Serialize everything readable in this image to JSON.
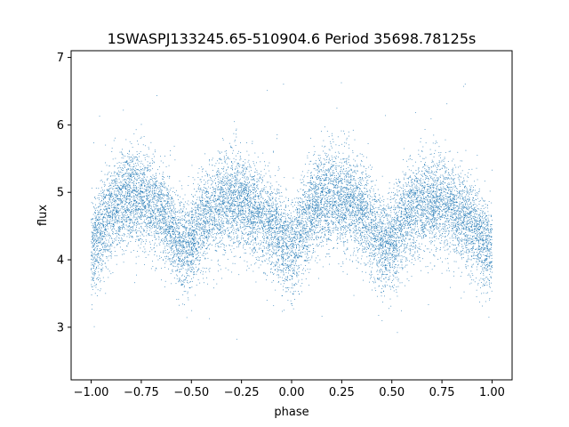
{
  "chart_data": {
    "type": "scatter",
    "title": "1SWASPJ133245.65-510904.6 Period 35698.78125s",
    "xlabel": "phase",
    "ylabel": "flux",
    "xlim": [
      -1.1,
      1.1
    ],
    "ylim": [
      2.22,
      7.1
    ],
    "xticks": [
      -1.0,
      -0.75,
      -0.5,
      -0.25,
      0.0,
      0.25,
      0.5,
      0.75,
      1.0
    ],
    "xtick_labels": [
      "−1.00",
      "−0.75",
      "−0.50",
      "−0.25",
      "0.00",
      "0.25",
      "0.50",
      "0.75",
      "1.00"
    ],
    "yticks": [
      3,
      4,
      5,
      6,
      7
    ],
    "ytick_labels": [
      "3",
      "4",
      "5",
      "6",
      "7"
    ],
    "grid": false,
    "point_color": "#1f77b4",
    "phase_range": [
      -1.0,
      1.0
    ],
    "mean_flux_shape": [
      {
        "phase": 0.0,
        "flux": 4.1
      },
      {
        "phase": 0.05,
        "flux": 4.45
      },
      {
        "phase": 0.1,
        "flux": 4.75
      },
      {
        "phase": 0.15,
        "flux": 4.88
      },
      {
        "phase": 0.2,
        "flux": 4.95
      },
      {
        "phase": 0.25,
        "flux": 4.92
      },
      {
        "phase": 0.3,
        "flux": 4.85
      },
      {
        "phase": 0.35,
        "flux": 4.72
      },
      {
        "phase": 0.4,
        "flux": 4.5
      },
      {
        "phase": 0.45,
        "flux": 4.22
      },
      {
        "phase": 0.5,
        "flux": 4.25
      },
      {
        "phase": 0.55,
        "flux": 4.55
      },
      {
        "phase": 0.6,
        "flux": 4.72
      },
      {
        "phase": 0.65,
        "flux": 4.82
      },
      {
        "phase": 0.7,
        "flux": 4.88
      },
      {
        "phase": 0.75,
        "flux": 4.86
      },
      {
        "phase": 0.8,
        "flux": 4.78
      },
      {
        "phase": 0.85,
        "flux": 4.65
      },
      {
        "phase": 0.9,
        "flux": 4.5
      },
      {
        "phase": 0.95,
        "flux": 4.3
      },
      {
        "phase": 1.0,
        "flux": 4.1
      }
    ],
    "scatter_sigma": 0.35,
    "num_points": 14000,
    "outlier_fraction": 0.004
  }
}
